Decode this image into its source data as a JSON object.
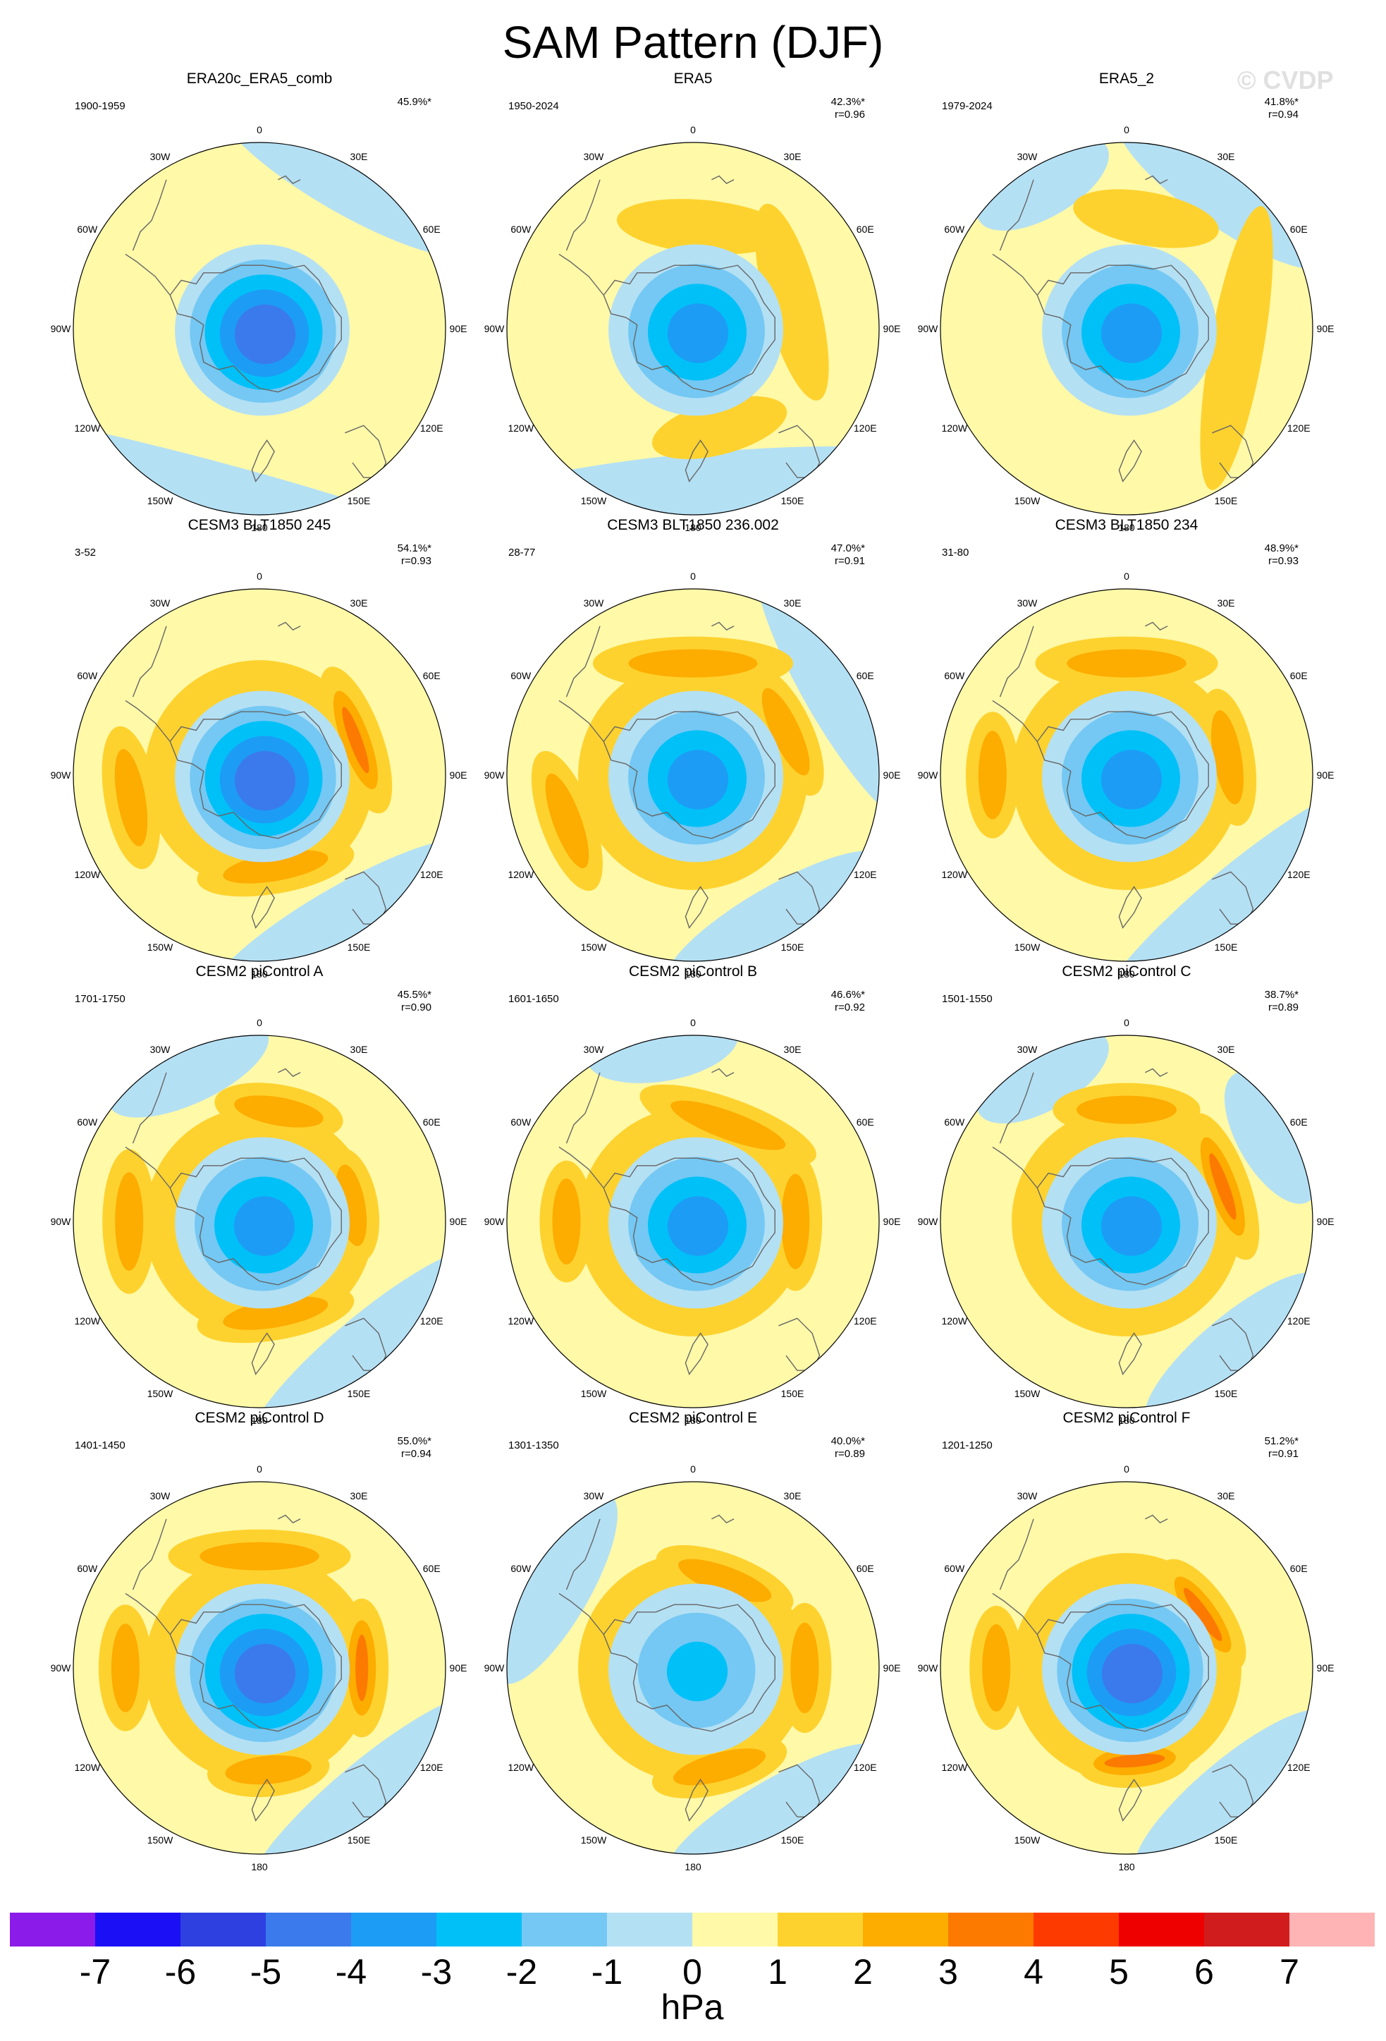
{
  "title": "SAM Pattern (DJF)",
  "watermark": "© CVDP",
  "longitude_labels": [
    "0",
    "30E",
    "60E",
    "90E",
    "120E",
    "150E",
    "180",
    "150W",
    "120W",
    "90W",
    "60W",
    "30W"
  ],
  "colors": {
    "cb": [
      "#8b1be8",
      "#1a0ff5",
      "#2e40e0",
      "#3a7aec",
      "#1d9cf5",
      "#00c0f8",
      "#74c8f3",
      "#b4e0f4",
      "#fff9a8",
      "#fed22e",
      "#fdac00",
      "#fc7a00",
      "#fd3b00",
      "#ee0000",
      "#d01c1c",
      "#feb4b4"
    ],
    "coast": "#666666",
    "frame": "#000000"
  },
  "colorbar": {
    "ticks": [
      "-7",
      "-6",
      "-5",
      "-4",
      "-3",
      "-2",
      "-1",
      "0",
      "1",
      "2",
      "3",
      "4",
      "5",
      "6",
      "7"
    ],
    "unit": "hPa"
  },
  "panels": [
    {
      "title": "ERA20c_ERA5_comb",
      "period": "1900-1959",
      "pct": "45.9%*",
      "r": "",
      "field": {
        "lo": -5,
        "ring": 1,
        "ringWarm": false,
        "blue": [
          [
            30,
            45,
            0.93
          ],
          [
            195,
            120,
            0.93
          ]
        ],
        "warm": []
      }
    },
    {
      "title": "ERA5",
      "period": "1950-2024",
      "pct": "42.3%*",
      "r": "r=0.96",
      "field": {
        "lo": -4,
        "ring": 1,
        "ringWarm": false,
        "blue": [
          [
            175,
            90,
            0.85
          ]
        ],
        "warm": [
          [
            5,
            40,
            0.55
          ],
          [
            75,
            50,
            0.55
          ],
          [
            165,
            30,
            0.55
          ]
        ]
      }
    },
    {
      "title": "ERA5_2",
      "period": "1979-2024",
      "pct": "41.8%*",
      "r": "r=0.94",
      "field": {
        "lo": -4,
        "ring": 1,
        "ringWarm": false,
        "blue": [
          [
            35,
            40,
            0.9
          ],
          [
            330,
            20,
            0.9
          ]
        ],
        "warm": [
          [
            10,
            30,
            0.6
          ],
          [
            100,
            70,
            0.6
          ]
        ]
      }
    },
    {
      "title": "CESM3 BLT1850 245",
      "period": "3-52",
      "pct": "54.1%*",
      "r": "r=0.93",
      "field": {
        "lo": -5,
        "ring": 1,
        "ringWarm": true,
        "blue": [
          [
            150,
            50,
            0.9
          ]
        ],
        "warm": [
          [
            70,
            35,
            0.55,
            3
          ],
          [
            170,
            40,
            0.5,
            2
          ],
          [
            260,
            25,
            0.7,
            2
          ]
        ]
      }
    },
    {
      "title": "CESM3 BLT1850 236.002",
      "period": "28-77",
      "pct": "47.0%*",
      "r": "r=0.91",
      "field": {
        "lo": -4,
        "ring": 1,
        "ringWarm": true,
        "blue": [
          [
            60,
            50,
            0.9
          ],
          [
            150,
            40,
            0.9
          ]
        ],
        "warm": [
          [
            65,
            30,
            0.55,
            2
          ],
          [
            0,
            45,
            0.6,
            2
          ],
          [
            250,
            25,
            0.72,
            2
          ]
        ]
      }
    },
    {
      "title": "CESM3 BLT1850 234",
      "period": "31-80",
      "pct": "48.9%*",
      "r": "r=0.93",
      "field": {
        "lo": -4,
        "ring": 1,
        "ringWarm": true,
        "blue": [
          [
            140,
            60,
            0.9
          ]
        ],
        "warm": [
          [
            80,
            30,
            0.55,
            2
          ],
          [
            0,
            40,
            0.6,
            2
          ],
          [
            270,
            20,
            0.72,
            2
          ]
        ]
      }
    },
    {
      "title": "CESM2 piControl A",
      "period": "1701-1750",
      "pct": "45.5%*",
      "r": "r=0.90",
      "field": {
        "lo": -4,
        "ring": 1,
        "ringWarm": true,
        "blue": [
          [
            140,
            50,
            0.9
          ],
          [
            335,
            25,
            0.9
          ]
        ],
        "warm": [
          [
            80,
            25,
            0.5,
            2
          ],
          [
            170,
            40,
            0.5,
            2
          ],
          [
            270,
            25,
            0.7,
            2
          ],
          [
            10,
            25,
            0.6,
            2
          ]
        ]
      }
    },
    {
      "title": "CESM2 piControl B",
      "period": "1601-1650",
      "pct": "46.6%*",
      "r": "r=0.92",
      "field": {
        "lo": -4,
        "ring": 1,
        "ringWarm": true,
        "blue": [
          [
            350,
            20,
            0.95
          ]
        ],
        "warm": [
          [
            20,
            45,
            0.55,
            2
          ],
          [
            90,
            30,
            0.55,
            2
          ],
          [
            270,
            20,
            0.68,
            2
          ]
        ]
      }
    },
    {
      "title": "CESM2 piControl C",
      "period": "1501-1550",
      "pct": "38.7%*",
      "r": "r=0.89",
      "field": {
        "lo": -4,
        "ring": 1,
        "ringWarm": true,
        "blue": [
          [
            60,
            20,
            0.9
          ],
          [
            140,
            35,
            0.9
          ],
          [
            330,
            20,
            0.9
          ]
        ],
        "warm": [
          [
            70,
            35,
            0.55,
            3
          ],
          [
            0,
            30,
            0.6,
            2
          ]
        ]
      }
    },
    {
      "title": "CESM2 piControl D",
      "period": "1401-1450",
      "pct": "55.0%*",
      "r": "r=0.94",
      "field": {
        "lo": -5,
        "ring": 1,
        "ringWarm": true,
        "blue": [
          [
            140,
            50,
            0.9
          ]
        ],
        "warm": [
          [
            90,
            30,
            0.55,
            3
          ],
          [
            0,
            40,
            0.6,
            2
          ],
          [
            175,
            25,
            0.55,
            2
          ],
          [
            270,
            20,
            0.72,
            2
          ]
        ]
      }
    },
    {
      "title": "CESM2 piControl E",
      "period": "1301-1350",
      "pct": "40.0%*",
      "r": "r=0.89",
      "field": {
        "lo": -3,
        "ring": 1,
        "ringWarm": true,
        "blue": [
          [
            300,
            35,
            0.85
          ],
          [
            150,
            40,
            0.9
          ]
        ],
        "warm": [
          [
            20,
            35,
            0.5,
            2
          ],
          [
            90,
            25,
            0.6,
            2
          ],
          [
            165,
            30,
            0.55,
            2
          ]
        ]
      }
    },
    {
      "title": "CESM2 piControl F",
      "period": "1201-1250",
      "pct": "51.2%*",
      "r": "r=0.91",
      "field": {
        "lo": -5,
        "ring": 1,
        "ringWarm": true,
        "blue": [
          [
            140,
            40,
            0.88
          ]
        ],
        "warm": [
          [
            55,
            30,
            0.5,
            3
          ],
          [
            175,
            25,
            0.5,
            3
          ],
          [
            270,
            20,
            0.7,
            2
          ]
        ]
      }
    }
  ]
}
